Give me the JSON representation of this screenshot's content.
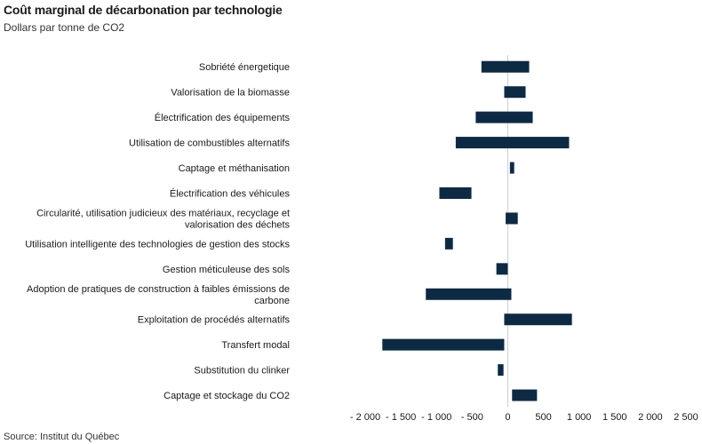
{
  "title": "Coût marginal de décarbonation par technologie",
  "subtitle": "Dollars par tonne de CO2",
  "source": "Source: Institut du Québec",
  "colors": {
    "bar": "#0d2a45",
    "axis": "#c8cdd3"
  },
  "chart_data": {
    "type": "bar",
    "orientation": "horizontal",
    "style": "floating-range",
    "title": "Coût marginal de décarbonation par technologie",
    "subtitle": "Dollars par tonne de CO2",
    "xlabel": "",
    "ylabel": "",
    "xlim": [
      -2000,
      2500
    ],
    "ticks": [
      -2000,
      -1500,
      -1000,
      -500,
      0,
      500,
      1000,
      1500,
      2000,
      2500
    ],
    "tick_labels": [
      "- 2 000",
      "- 1 500",
      "- 1 000",
      "- 500",
      "0",
      "500",
      "1 000",
      "1 500",
      "2 000",
      "2 500"
    ],
    "grid": false,
    "categories": [
      "Sobriété énergetique",
      "Valorisation de la biomasse",
      "Électrification des équipements",
      "Utilisation de combustibles alternatifs",
      "Captage et méthanisation",
      "Électrification des véhicules",
      "Circularité, utilisation judicieux des matériaux, recyclage et valorisation des déchets",
      "Utilisation intelligente des technologies de gestion des stocks",
      "Gestion méticuleuse des sols",
      "Adoption de pratiques de construction à faibles émissions de carbone",
      "Exploitation de procédés alternatifs",
      "Transfert modal",
      "Substitution du clinker",
      "Captage et stockage du CO2"
    ],
    "category_lines": [
      [
        "Sobriété énergetique"
      ],
      [
        "Valorisation de la biomasse"
      ],
      [
        "Électrification des équipements"
      ],
      [
        "Utilisation de combustibles alternatifs"
      ],
      [
        "Captage et méthanisation"
      ],
      [
        "Électrification des véhicules"
      ],
      [
        "Circularité, utilisation judicieux des matériaux, recyclage et",
        "valorisation des déchets"
      ],
      [
        "Utilisation intelligente des technologies de gestion des stocks"
      ],
      [
        "Gestion méticuleuse des sols"
      ],
      [
        "Adoption de pratiques de construction à faibles émissions de",
        "carbone"
      ],
      [
        "Exploitation de procédés alternatifs"
      ],
      [
        "Transfert modal"
      ],
      [
        "Substitution du clinker"
      ],
      [
        "Captage et stockage du CO2"
      ]
    ],
    "ranges": [
      [
        -370,
        300
      ],
      [
        -50,
        250
      ],
      [
        -450,
        350
      ],
      [
        -730,
        860
      ],
      [
        30,
        90
      ],
      [
        -960,
        -510
      ],
      [
        -30,
        140
      ],
      [
        -880,
        -770
      ],
      [
        -160,
        0
      ],
      [
        -1150,
        50
      ],
      [
        -50,
        900
      ],
      [
        -1760,
        -50
      ],
      [
        -140,
        -60
      ],
      [
        60,
        410
      ]
    ]
  }
}
